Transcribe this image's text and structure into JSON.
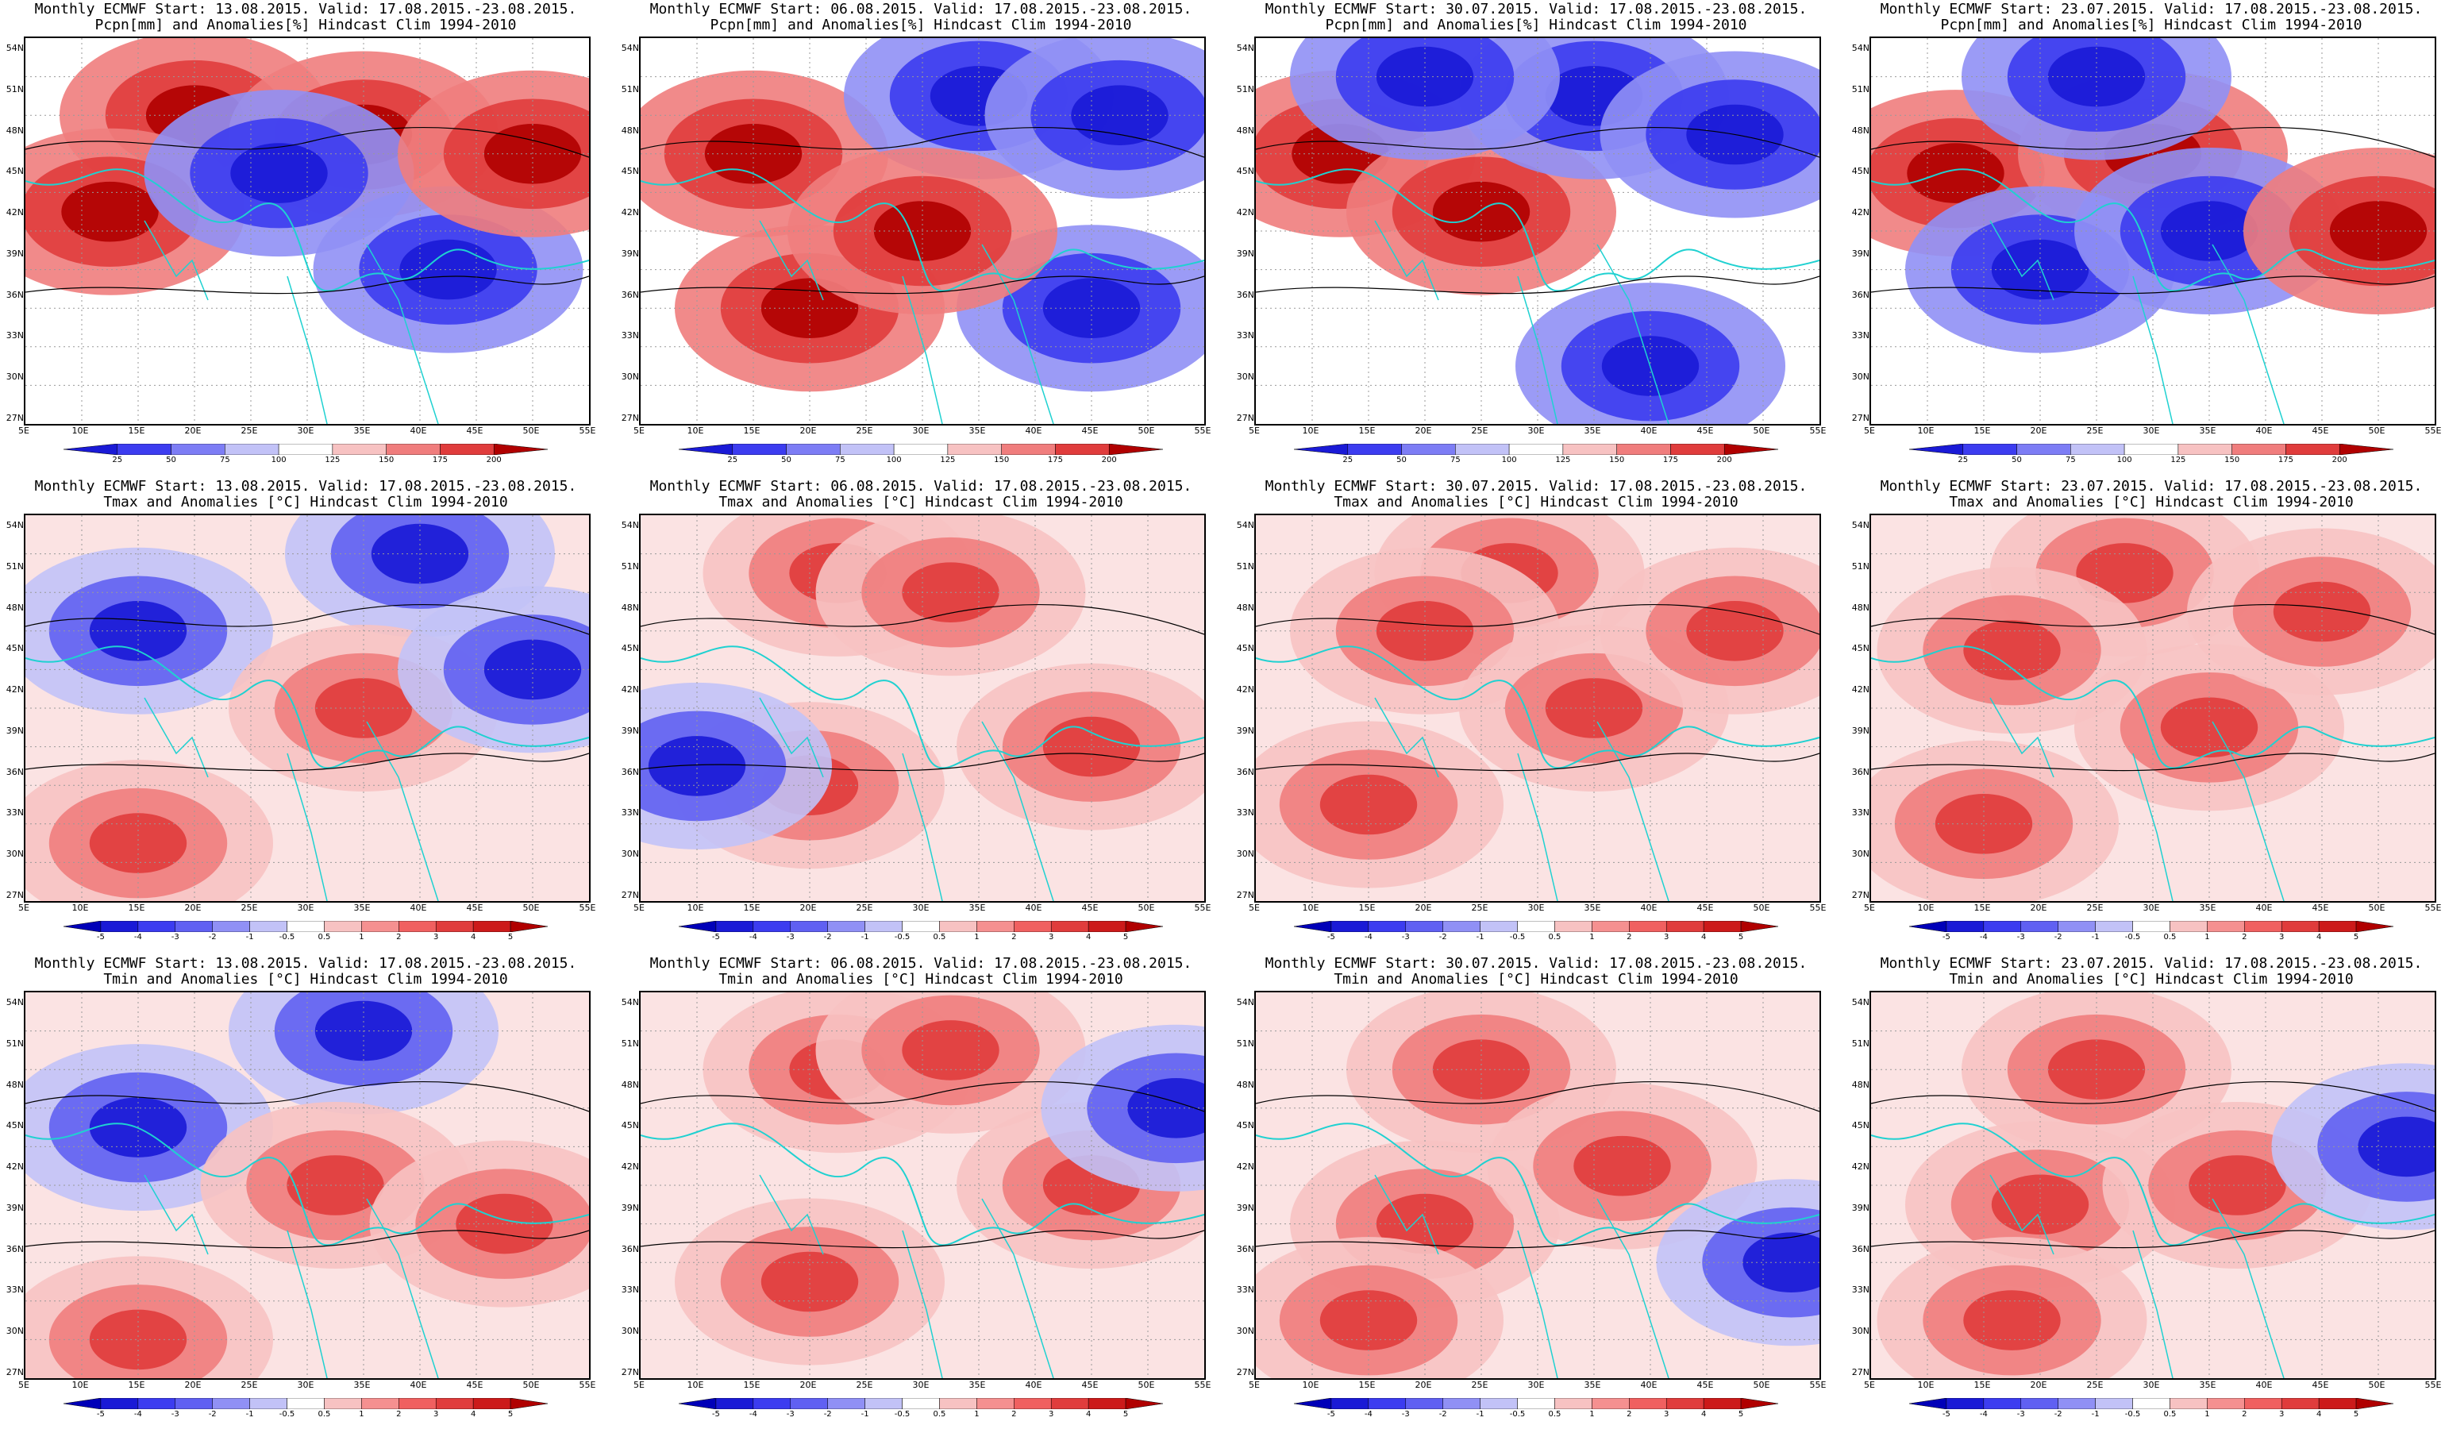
{
  "rows": [
    {
      "var": "pcpn",
      "title2": "Pcpn[mm] and Anomalies[%] Hindcast Clim 1994-2010",
      "colorbar_labels": [
        "25",
        "50",
        "75",
        "100",
        "125",
        "150",
        "175",
        "200"
      ],
      "colorbar_colors": [
        "#1a1ad6",
        "#3c3cf0",
        "#7d7df5",
        "#c2c2f7",
        "#ffffff",
        "#f7c2c2",
        "#f07d7d",
        "#e03c3c",
        "#b00000"
      ]
    },
    {
      "var": "tmax",
      "title2": "Tmax and Anomalies [°C] Hindcast Clim 1994-2010",
      "colorbar_labels": [
        "-5",
        "-4",
        "-3",
        "-2",
        "-1",
        "-0.5",
        "0.5",
        "1",
        "2",
        "3",
        "4",
        "5"
      ],
      "colorbar_colors": [
        "#0000b8",
        "#1a1ad6",
        "#3c3cf0",
        "#6060f2",
        "#9090f5",
        "#c2c2f7",
        "#ffffff",
        "#f7c2c2",
        "#f59090",
        "#f06060",
        "#e03c3c",
        "#cc1a1a",
        "#b00000"
      ]
    },
    {
      "var": "tmin",
      "title2": "Tmin and Anomalies [°C] Hindcast Clim 1994-2010",
      "colorbar_labels": [
        "-5",
        "-4",
        "-3",
        "-2",
        "-1",
        "-0.5",
        "0.5",
        "1",
        "2",
        "3",
        "4",
        "5"
      ],
      "colorbar_colors": [
        "#0000b8",
        "#1a1ad6",
        "#3c3cf0",
        "#6060f2",
        "#9090f5",
        "#c2c2f7",
        "#ffffff",
        "#f7c2c2",
        "#f59090",
        "#f06060",
        "#e03c3c",
        "#cc1a1a",
        "#b00000"
      ]
    }
  ],
  "columns": [
    {
      "title1": "Monthly ECMWF Start: 13.08.2015. Valid: 17.08.2015.-23.08.2015."
    },
    {
      "title1": "Monthly ECMWF Start: 06.08.2015. Valid: 17.08.2015.-23.08.2015."
    },
    {
      "title1": "Monthly ECMWF Start: 30.07.2015. Valid: 17.08.2015.-23.08.2015."
    },
    {
      "title1": "Monthly ECMWF Start: 23.07.2015. Valid: 17.08.2015.-23.08.2015."
    }
  ],
  "lat_labels": [
    "54N",
    "51N",
    "48N",
    "45N",
    "42N",
    "39N",
    "36N",
    "33N",
    "30N",
    "27N"
  ],
  "lon_labels": [
    "5E",
    "10E",
    "15E",
    "20E",
    "25E",
    "30E",
    "35E",
    "40E",
    "45E",
    "50E",
    "55E"
  ],
  "anomaly_patterns": {
    "pcpn": [
      [
        [
          0.3,
          0.2,
          "wet"
        ],
        [
          0.6,
          0.25,
          "wet"
        ],
        [
          0.15,
          0.45,
          "wet"
        ],
        [
          0.45,
          0.35,
          "dry"
        ],
        [
          0.75,
          0.6,
          "dry"
        ],
        [
          0.9,
          0.3,
          "wet"
        ]
      ],
      [
        [
          0.2,
          0.3,
          "wet"
        ],
        [
          0.6,
          0.15,
          "dry"
        ],
        [
          0.85,
          0.2,
          "dry"
        ],
        [
          0.3,
          0.7,
          "wet"
        ],
        [
          0.8,
          0.7,
          "dry"
        ],
        [
          0.5,
          0.5,
          "wet"
        ]
      ],
      [
        [
          0.15,
          0.3,
          "wet"
        ],
        [
          0.4,
          0.45,
          "wet"
        ],
        [
          0.6,
          0.15,
          "dry"
        ],
        [
          0.85,
          0.25,
          "dry"
        ],
        [
          0.7,
          0.85,
          "dry"
        ],
        [
          0.3,
          0.1,
          "dry"
        ]
      ],
      [
        [
          0.15,
          0.35,
          "wet"
        ],
        [
          0.5,
          0.3,
          "wet"
        ],
        [
          0.3,
          0.6,
          "dry"
        ],
        [
          0.6,
          0.5,
          "dry"
        ],
        [
          0.9,
          0.5,
          "wet"
        ],
        [
          0.4,
          0.1,
          "dry"
        ]
      ]
    ],
    "tmax": [
      [
        [
          0.7,
          0.1,
          "cold"
        ],
        [
          0.2,
          0.3,
          "cold"
        ],
        [
          0.2,
          0.85,
          "warm"
        ],
        [
          0.6,
          0.5,
          "warm"
        ],
        [
          0.9,
          0.4,
          "cold"
        ]
      ],
      [
        [
          0.35,
          0.15,
          "warm"
        ],
        [
          0.55,
          0.2,
          "warm"
        ],
        [
          0.3,
          0.7,
          "warm"
        ],
        [
          0.8,
          0.6,
          "warm"
        ],
        [
          0.1,
          0.65,
          "cold"
        ]
      ],
      [
        [
          0.45,
          0.15,
          "warm"
        ],
        [
          0.3,
          0.3,
          "warm"
        ],
        [
          0.6,
          0.5,
          "warm"
        ],
        [
          0.2,
          0.75,
          "warm"
        ],
        [
          0.85,
          0.3,
          "warm"
        ]
      ],
      [
        [
          0.45,
          0.15,
          "warm"
        ],
        [
          0.25,
          0.35,
          "warm"
        ],
        [
          0.6,
          0.55,
          "warm"
        ],
        [
          0.2,
          0.8,
          "warm"
        ],
        [
          0.8,
          0.25,
          "warm"
        ]
      ]
    ],
    "tmin": [
      [
        [
          0.6,
          0.1,
          "cold"
        ],
        [
          0.2,
          0.35,
          "cold"
        ],
        [
          0.2,
          0.9,
          "warm"
        ],
        [
          0.55,
          0.5,
          "warm"
        ],
        [
          0.85,
          0.6,
          "warm"
        ]
      ],
      [
        [
          0.35,
          0.2,
          "warm"
        ],
        [
          0.55,
          0.15,
          "warm"
        ],
        [
          0.3,
          0.75,
          "warm"
        ],
        [
          0.8,
          0.5,
          "warm"
        ],
        [
          0.95,
          0.3,
          "cold"
        ]
      ],
      [
        [
          0.4,
          0.2,
          "warm"
        ],
        [
          0.3,
          0.6,
          "warm"
        ],
        [
          0.65,
          0.45,
          "warm"
        ],
        [
          0.2,
          0.85,
          "warm"
        ],
        [
          0.95,
          0.7,
          "cold"
        ]
      ],
      [
        [
          0.4,
          0.2,
          "warm"
        ],
        [
          0.3,
          0.55,
          "warm"
        ],
        [
          0.65,
          0.5,
          "warm"
        ],
        [
          0.25,
          0.85,
          "warm"
        ],
        [
          0.95,
          0.4,
          "cold"
        ]
      ]
    ]
  }
}
